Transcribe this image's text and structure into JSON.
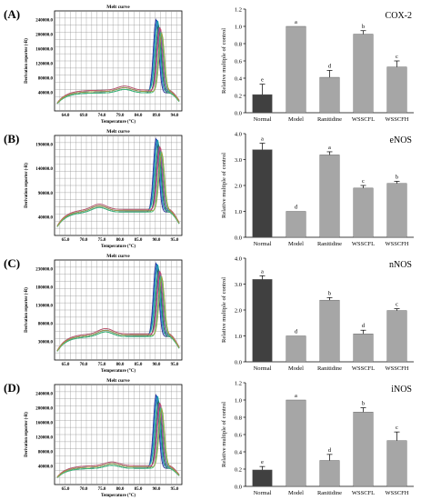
{
  "chart_data": [
    {
      "panel_label": "(A)",
      "melt": {
        "title": "Melt curve",
        "ylabel": "Derivation reporter (-R)",
        "xlabel": "Temperature (°C)",
        "xticks": [
          "64.0",
          "69.0",
          "74.0",
          "79.0",
          "84.0",
          "89.0",
          "94.0"
        ],
        "yticks": [
          "240000.0",
          "200000.0",
          "160000.0",
          "120000.0",
          "80000.0",
          "40000.0"
        ]
      },
      "bar": {
        "type": "bar",
        "title": "COX-2",
        "ylabel": "Relative multiple of control",
        "categories": [
          "Normal",
          "Model",
          "Ranitidine",
          "WSSCFL",
          "WSSCFH"
        ],
        "values": [
          0.21,
          1.0,
          0.41,
          0.91,
          0.53
        ],
        "errors": [
          0.12,
          0.0,
          0.08,
          0.04,
          0.07
        ],
        "letters": [
          "e",
          "a",
          "d",
          "b",
          "c"
        ],
        "ylim": [
          0,
          1.2
        ],
        "yticks": [
          "0.0",
          "0.2",
          "0.4",
          "0.6",
          "0.8",
          "1.0",
          "1.2"
        ]
      }
    },
    {
      "panel_label": "(B)",
      "melt": {
        "title": "Melt curve",
        "ylabel": "Derivation reporter (-R)",
        "xlabel": "Temperature (°C)",
        "xticks": [
          "65.0",
          "70.0",
          "75.0",
          "80.0",
          "85.0",
          "90.0",
          "95.0"
        ],
        "yticks": [
          "190000.0",
          "140000.0",
          "90000.0",
          "40000.0"
        ]
      },
      "bar": {
        "type": "bar",
        "title": "eNOS",
        "ylabel": "Relative multiple of control",
        "categories": [
          "Normal",
          "Model",
          "Ranitidine",
          "WSSCFL",
          "WSSCFH"
        ],
        "values": [
          3.38,
          1.0,
          3.18,
          1.9,
          2.08
        ],
        "errors": [
          0.25,
          0.0,
          0.12,
          0.1,
          0.08
        ],
        "letters": [
          "a",
          "d",
          "a",
          "c",
          "b"
        ],
        "ylim": [
          0,
          4.0
        ],
        "yticks": [
          "0.0",
          "1.0",
          "2.0",
          "3.0",
          "4.0"
        ]
      }
    },
    {
      "panel_label": "(C)",
      "melt": {
        "title": "Melt curve",
        "ylabel": "Derivation reporter (-R)",
        "xlabel": "Temperature (°C)",
        "xticks": [
          "65.0",
          "70.0",
          "75.0",
          "80.0",
          "85.0",
          "90.0",
          "95.0"
        ],
        "yticks": [
          "230000.0",
          "180000.0",
          "130000.0",
          "80000.0",
          "30000.0"
        ]
      },
      "bar": {
        "type": "bar",
        "title": "nNOS",
        "ylabel": "Relative multiple of control",
        "categories": [
          "Normal",
          "Model",
          "Ranitidine",
          "WSSCFL",
          "WSSCFH"
        ],
        "values": [
          3.18,
          1.0,
          2.38,
          1.08,
          1.98
        ],
        "errors": [
          0.14,
          0.0,
          0.1,
          0.14,
          0.07
        ],
        "letters": [
          "a",
          "d",
          "b",
          "d",
          "c"
        ],
        "ylim": [
          0,
          4.0
        ],
        "yticks": [
          "0.0",
          "1.0",
          "2.0",
          "3.0",
          "4.0"
        ]
      }
    },
    {
      "panel_label": "(D)",
      "melt": {
        "title": "Melt curve",
        "ylabel": "Derivation reporter (-R)",
        "xlabel": "Temperature (°C)",
        "xticks": [
          "65.0",
          "70.0",
          "75.0",
          "80.0",
          "85.0",
          "90.0",
          "95.0"
        ],
        "yticks": [
          "240000.0",
          "200000.0",
          "160000.0",
          "120000.0",
          "80000.0",
          "40000.0"
        ]
      },
      "bar": {
        "type": "bar",
        "title": "iNOS",
        "ylabel": "Relative multiple of control",
        "categories": [
          "Normal",
          "Model",
          "Ranitidine",
          "WSSCFL",
          "WSSCFH"
        ],
        "values": [
          0.19,
          1.0,
          0.3,
          0.86,
          0.53
        ],
        "errors": [
          0.04,
          0.0,
          0.07,
          0.05,
          0.1
        ],
        "letters": [
          "e",
          "a",
          "d",
          "b",
          "c"
        ],
        "ylim": [
          0,
          1.2
        ],
        "yticks": [
          "0.0",
          "0.2",
          "0.4",
          "0.6",
          "0.8",
          "1.0",
          "1.2"
        ]
      }
    }
  ],
  "colors": {
    "normal_bar": "#404040",
    "treated_bar": "#a6a6a6",
    "melt_curves": [
      "#1f2a8c",
      "#2b6fd6",
      "#18a3a0",
      "#1d8a4e",
      "#7a3fa8",
      "#d0506a",
      "#3fbf7a",
      "#a0a040"
    ],
    "melt_grid": "#8a8a8a"
  }
}
